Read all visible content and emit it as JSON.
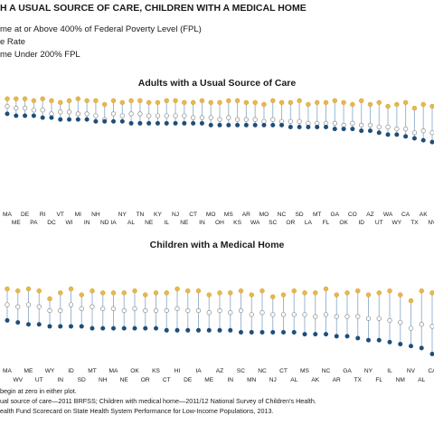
{
  "header": {
    "title": "H A USUAL SOURCE OF CARE, CHILDREN WITH A MEDICAL HOME"
  },
  "legend": {
    "items": [
      {
        "label": "me at or Above 400% of Federal Poverty Level (FPL)",
        "color": "#e8b84a"
      },
      {
        "label": "e Rate",
        "color": "#ffffff"
      },
      {
        "label": "me Under 200% FPL",
        "color": "#1f4e79"
      }
    ]
  },
  "notes": {
    "line1": "begin at zero in either plot.",
    "line2": "ual source of care—2011 BRFSS; Children with medical home—2011/12 National Survey of Children's Health.",
    "line3": "ealth Fund Scorecard on State Health System Performance for Low-Income Populations, 2013."
  },
  "colors": {
    "high_income": "#e8b84a",
    "average": "#ffffff",
    "low_income": "#1f4e79",
    "stem": "#9bb7d4"
  },
  "chart_data": [
    {
      "type": "scatter",
      "title": "Adults with a Usual Source of Care",
      "categories": [
        "MA",
        "ME",
        "DE",
        "PA",
        "RI",
        "DC",
        "VT",
        "WI",
        "MI",
        "IN",
        "NH",
        "ND",
        "IA",
        "NY",
        "AL",
        "TN",
        "NE",
        "KY",
        "IL",
        "NJ",
        "NE",
        "CT",
        "IN",
        "MO",
        "OH",
        "MS",
        "KS",
        "AR",
        "WA",
        "MO",
        "SC",
        "NC",
        "OR",
        "SD",
        "LA",
        "MT",
        "FL",
        "GA",
        "OK",
        "CO",
        "ID",
        "AZ",
        "UT",
        "WA",
        "WY",
        "CA",
        "TX",
        "AK",
        "NV"
      ],
      "label_rows": [
        0,
        1,
        0,
        1,
        0,
        1,
        0,
        1,
        0,
        1,
        0,
        1,
        1,
        0,
        1,
        0,
        1,
        0,
        1,
        0,
        1,
        0,
        1,
        0,
        1,
        0,
        1,
        0,
        1,
        0,
        1,
        0,
        1,
        0,
        1,
        0,
        1,
        0,
        1,
        0,
        1,
        0,
        1,
        0,
        1,
        0,
        1,
        0,
        1
      ],
      "series": [
        {
          "name": "me at or Above 400% of Federal Poverty Level (FPL)",
          "values": [
            93,
            93,
            93,
            92,
            93,
            92,
            91,
            92,
            93,
            92,
            92,
            90,
            92,
            91,
            92,
            92,
            91,
            91,
            92,
            92,
            91,
            91,
            92,
            91,
            91,
            92,
            92,
            91,
            91,
            90,
            92,
            91,
            91,
            92,
            90,
            91,
            91,
            92,
            91,
            90,
            92,
            90,
            91,
            89,
            90,
            91,
            88,
            90,
            89
          ]
        },
        {
          "name": "e Rate",
          "values": [
            89,
            88,
            88,
            87,
            87,
            85,
            86,
            86,
            85,
            85,
            84,
            82,
            85,
            84,
            85,
            85,
            84,
            84,
            84,
            84,
            84,
            83,
            83,
            83,
            82,
            83,
            82,
            82,
            82,
            81,
            82,
            81,
            81,
            81,
            80,
            80,
            80,
            80,
            79,
            80,
            79,
            79,
            78,
            78,
            77,
            77,
            75,
            76,
            75
          ]
        },
        {
          "name": "me Under 200% FPL",
          "values": [
            85,
            84,
            84,
            84,
            83,
            83,
            82,
            82,
            82,
            82,
            81,
            81,
            81,
            81,
            80,
            80,
            80,
            80,
            80,
            80,
            80,
            80,
            80,
            79,
            79,
            79,
            79,
            79,
            79,
            79,
            79,
            79,
            78,
            78,
            78,
            78,
            78,
            77,
            77,
            77,
            76,
            76,
            75,
            74,
            74,
            73,
            72,
            71,
            70
          ]
        }
      ],
      "ylim": [
        60,
        96
      ]
    },
    {
      "type": "scatter",
      "title": "Children with a Medical Home",
      "categories": [
        "MA",
        "WV",
        "ME",
        "UT",
        "WY",
        "IN",
        "ID",
        "SD",
        "MT",
        "NH",
        "MA",
        "NE",
        "OK",
        "OR",
        "KS",
        "CT",
        "HI",
        "DE",
        "IA",
        "ME",
        "AZ",
        "IN",
        "SC",
        "MN",
        "NC",
        "NJ",
        "CT",
        "AL",
        "MS",
        "AK",
        "NC",
        "AR",
        "GA",
        "TX",
        "NY",
        "FL",
        "IL",
        "NM",
        "NV",
        "AL",
        "CA"
      ],
      "label_rows": [
        0,
        1,
        0,
        1,
        0,
        1,
        0,
        1,
        0,
        1,
        0,
        1,
        0,
        1,
        0,
        1,
        0,
        1,
        0,
        1,
        0,
        1,
        0,
        1,
        0,
        1,
        0,
        1,
        0,
        1,
        0,
        1,
        0,
        1,
        0,
        1,
        0,
        1,
        0,
        1,
        0
      ],
      "series": [
        {
          "name": "me at or Above 400% of Federal Poverty Level (FPL)",
          "values": [
            71,
            70,
            71,
            70,
            66,
            69,
            71,
            68,
            70,
            69,
            69,
            69,
            70,
            68,
            69,
            69,
            71,
            70,
            70,
            68,
            69,
            69,
            70,
            68,
            70,
            67,
            68,
            70,
            69,
            69,
            71,
            68,
            69,
            70,
            68,
            69,
            70,
            68,
            65,
            70,
            69
          ]
        },
        {
          "name": "e Rate",
          "values": [
            63,
            62,
            63,
            62,
            60,
            60,
            63,
            61,
            62,
            61,
            61,
            60,
            61,
            60,
            60,
            60,
            61,
            60,
            60,
            59,
            60,
            59,
            60,
            58,
            59,
            58,
            58,
            58,
            58,
            57,
            58,
            57,
            57,
            57,
            56,
            56,
            55,
            54,
            51,
            53,
            52
          ]
        },
        {
          "name": "me Under 200% FPL",
          "values": [
            55,
            54,
            53,
            53,
            52,
            52,
            52,
            52,
            51,
            51,
            51,
            51,
            51,
            51,
            51,
            50,
            50,
            50,
            50,
            50,
            50,
            50,
            49,
            49,
            49,
            49,
            49,
            49,
            48,
            48,
            48,
            47,
            47,
            46,
            45,
            45,
            44,
            43,
            42,
            41,
            38
          ]
        }
      ],
      "ylim": [
        35,
        74
      ]
    }
  ]
}
